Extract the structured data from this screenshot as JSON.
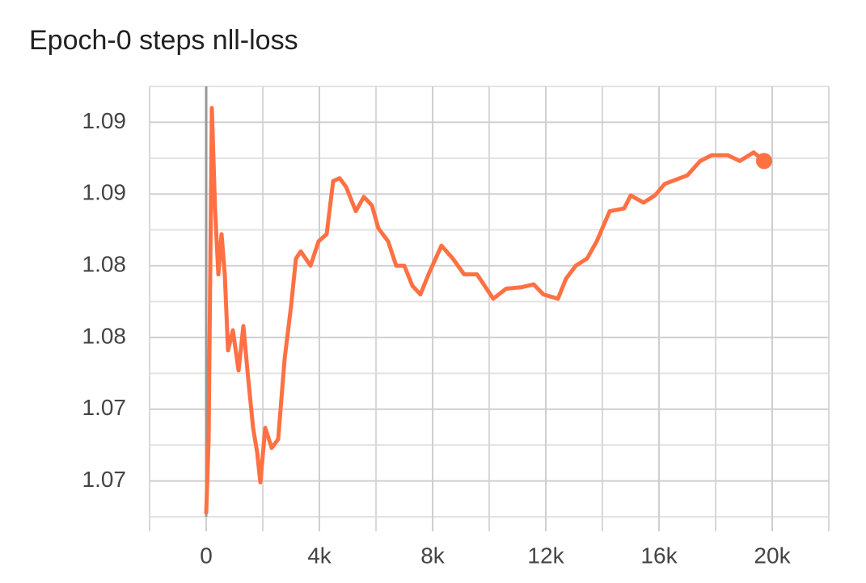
{
  "chart_data": {
    "type": "line",
    "title": "Epoch-0 steps nll-loss",
    "x": [
      0,
      86,
      200,
      314,
      429,
      543,
      657,
      771,
      943,
      1143,
      1314,
      1486,
      1657,
      1800,
      1914,
      2086,
      2314,
      2543,
      2771,
      3000,
      3171,
      3343,
      3686,
      3971,
      4257,
      4486,
      4714,
      4943,
      5286,
      5571,
      5857,
      6086,
      6429,
      6714,
      7000,
      7286,
      7571,
      7857,
      8314,
      8714,
      9114,
      9571,
      10143,
      10600,
      11143,
      11571,
      11914,
      12429,
      12714,
      13057,
      13457,
      13800,
      14257,
      14771,
      15000,
      15457,
      15857,
      16200,
      17000,
      17457,
      17857,
      18429,
      18857,
      19343,
      19714
    ],
    "series": [
      {
        "color": "#ff7043",
        "values": [
          1.0677,
          1.0729,
          1.096,
          1.0889,
          1.0844,
          1.0872,
          1.0844,
          1.0791,
          1.0805,
          1.0777,
          1.0808,
          1.0771,
          1.0737,
          1.072,
          1.0699,
          1.0737,
          1.0723,
          1.0729,
          1.0785,
          1.0822,
          1.0855,
          1.086,
          1.085,
          1.0867,
          1.0872,
          1.0909,
          1.0911,
          1.0905,
          1.0888,
          1.0898,
          1.0892,
          1.0876,
          1.0867,
          1.085,
          1.085,
          1.0836,
          1.083,
          1.0844,
          1.0864,
          1.0855,
          1.0844,
          1.0844,
          1.0827,
          1.0834,
          1.0835,
          1.0837,
          1.083,
          1.0827,
          1.0841,
          1.085,
          1.0855,
          1.0867,
          1.0888,
          1.089,
          1.0899,
          1.0894,
          1.0899,
          1.0907,
          1.0913,
          1.0923,
          1.0927,
          1.0927,
          1.0923,
          1.0929,
          1.0923
        ]
      }
    ],
    "xlim": [
      -2000,
      22000
    ],
    "xticks": [
      {
        "value": 0,
        "label": "0"
      },
      {
        "value": 4000,
        "label": "4k"
      },
      {
        "value": 8000,
        "label": "8k"
      },
      {
        "value": 12000,
        "label": "12k"
      },
      {
        "value": 16000,
        "label": "16k"
      },
      {
        "value": 20000,
        "label": "20k"
      }
    ],
    "x_minor_ticks": [
      -2000,
      2000,
      6000,
      10000,
      14000,
      18000,
      22000
    ],
    "ylim": [
      1.0675,
      1.0975
    ],
    "yticks": [
      {
        "value": 1.095,
        "label": "1.09"
      },
      {
        "value": 1.09,
        "label": "1.09"
      },
      {
        "value": 1.085,
        "label": "1.08"
      },
      {
        "value": 1.08,
        "label": "1.08"
      },
      {
        "value": 1.075,
        "label": "1.07"
      },
      {
        "value": 1.07,
        "label": "1.07"
      }
    ],
    "y_minor_ticks": [
      1.0975,
      1.0925,
      1.0875,
      1.0825,
      1.0775,
      1.0725,
      1.0675
    ],
    "grid": true
  }
}
